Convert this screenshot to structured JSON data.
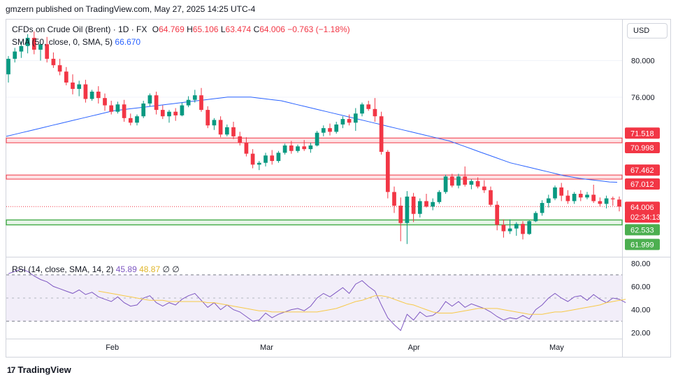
{
  "header": {
    "published_by": "gmzern published on TradingView.com, May 27, 2025 14:25 UTC-4"
  },
  "legend": {
    "symbol": "CFDs on Crude Oil (Brent) · 1D · FX",
    "open_label": "O",
    "open": "64.769",
    "high_label": "H",
    "high": "65.106",
    "low_label": "L",
    "low": "63.474",
    "close_label": "C",
    "close": "64.006",
    "change": "−0.763 (−1.18%)",
    "sma_label": "SMA (50, close, 0, SMA, 5)",
    "sma_value": "66.670",
    "rsi_label": "RSI (14, close, SMA, 14, 2)",
    "rsi_value": "45.89",
    "rsi_sma_value": "48.87",
    "rsi_extra1": "∅",
    "rsi_extra2": "∅"
  },
  "currency_button": "USD",
  "footer": {
    "brand": "TradingView",
    "logo": "17"
  },
  "colors": {
    "up": "#089981",
    "down": "#f23645",
    "sma": "#2962ff",
    "rsi": "#7e57c2",
    "rsi_sma": "#f7c948",
    "support": "#4caf50",
    "resistance": "#f23645",
    "rsi_band": "#ede7f6"
  },
  "chart_data": [
    {
      "type": "candlestick",
      "title": "CFDs on Crude Oil (Brent)",
      "price_axis_ticks": [
        "80.000",
        "76.000"
      ],
      "x_ticks": [
        "Feb",
        "Mar",
        "Apr",
        "May"
      ],
      "ylim": [
        58.5,
        84.5
      ],
      "candles": [
        [
          78.5,
          80.5,
          77.6,
          80.2
        ],
        [
          80.2,
          81.4,
          79.8,
          81.0
        ],
        [
          81.0,
          82.1,
          80.3,
          81.6
        ],
        [
          81.6,
          82.9,
          80.8,
          82.5
        ],
        [
          82.5,
          83.2,
          80.7,
          81.2
        ],
        [
          81.2,
          81.9,
          80.0,
          81.8
        ],
        [
          81.8,
          82.6,
          79.8,
          80.2
        ],
        [
          80.2,
          80.9,
          79.2,
          79.5
        ],
        [
          79.5,
          80.2,
          78.4,
          78.8
        ],
        [
          78.8,
          79.3,
          77.3,
          77.6
        ],
        [
          77.6,
          78.5,
          76.3,
          76.9
        ],
        [
          76.9,
          77.8,
          76.1,
          77.4
        ],
        [
          77.4,
          77.9,
          75.4,
          75.8
        ],
        [
          75.8,
          76.8,
          75.6,
          76.6
        ],
        [
          76.6,
          77.2,
          75.3,
          75.9
        ],
        [
          75.9,
          76.4,
          74.5,
          75.1
        ],
        [
          75.1,
          75.6,
          74.1,
          74.4
        ],
        [
          74.4,
          75.5,
          74.2,
          75.2
        ],
        [
          75.2,
          75.7,
          73.3,
          73.7
        ],
        [
          73.7,
          74.2,
          72.9,
          73.2
        ],
        [
          73.2,
          74.1,
          72.9,
          73.9
        ],
        [
          73.9,
          75.6,
          73.7,
          75.3
        ],
        [
          75.3,
          76.4,
          75.0,
          76.2
        ],
        [
          76.2,
          76.6,
          74.1,
          74.6
        ],
        [
          74.6,
          75.1,
          73.6,
          73.9
        ],
        [
          73.9,
          74.6,
          73.2,
          74.4
        ],
        [
          74.4,
          74.8,
          73.4,
          74.0
        ],
        [
          74.0,
          75.4,
          73.9,
          75.1
        ],
        [
          75.1,
          76.1,
          74.9,
          75.7
        ],
        [
          75.7,
          76.8,
          75.4,
          76.2
        ],
        [
          76.2,
          77.0,
          74.4,
          74.6
        ],
        [
          74.6,
          75.0,
          72.6,
          72.9
        ],
        [
          72.9,
          73.7,
          72.4,
          73.5
        ],
        [
          73.5,
          73.9,
          71.6,
          71.9
        ],
        [
          71.9,
          73.0,
          71.7,
          72.7
        ],
        [
          72.7,
          73.3,
          71.4,
          71.7
        ],
        [
          71.7,
          72.2,
          70.7,
          71.0
        ],
        [
          71.0,
          71.6,
          69.5,
          69.8
        ],
        [
          69.8,
          70.3,
          68.2,
          68.6
        ],
        [
          68.6,
          69.0,
          68.0,
          68.8
        ],
        [
          68.8,
          69.9,
          68.4,
          69.6
        ],
        [
          69.6,
          70.2,
          68.6,
          69.0
        ],
        [
          69.0,
          70.1,
          68.8,
          69.9
        ],
        [
          69.9,
          70.9,
          69.7,
          70.7
        ],
        [
          70.7,
          71.2,
          69.8,
          70.1
        ],
        [
          70.1,
          70.8,
          69.9,
          70.6
        ],
        [
          70.6,
          71.3,
          70.1,
          70.3
        ],
        [
          70.3,
          71.0,
          69.9,
          70.7
        ],
        [
          70.7,
          72.3,
          70.6,
          72.1
        ],
        [
          72.1,
          72.9,
          71.7,
          72.6
        ],
        [
          72.6,
          73.1,
          71.8,
          72.2
        ],
        [
          72.2,
          73.3,
          72.0,
          73.0
        ],
        [
          73.0,
          73.9,
          72.6,
          73.6
        ],
        [
          73.6,
          74.1,
          72.9,
          73.2
        ],
        [
          73.2,
          74.8,
          72.3,
          74.2
        ],
        [
          74.2,
          75.4,
          73.9,
          75.2
        ],
        [
          75.2,
          75.6,
          74.5,
          74.7
        ],
        [
          74.7,
          75.9,
          73.3,
          73.9
        ],
        [
          73.9,
          74.4,
          69.7,
          70.0
        ],
        [
          70.0,
          70.2,
          64.9,
          65.6
        ],
        [
          65.6,
          66.2,
          63.3,
          64.1
        ],
        [
          64.1,
          65.0,
          60.2,
          62.2
        ],
        [
          62.2,
          65.7,
          59.9,
          65.1
        ],
        [
          65.1,
          65.5,
          62.3,
          63.2
        ],
        [
          63.2,
          64.9,
          62.8,
          64.6
        ],
        [
          64.6,
          65.4,
          63.9,
          64.0
        ],
        [
          64.0,
          64.9,
          63.6,
          64.5
        ],
        [
          64.5,
          65.8,
          64.3,
          65.6
        ],
        [
          65.6,
          67.5,
          65.4,
          67.3
        ],
        [
          67.3,
          67.6,
          66.1,
          66.3
        ],
        [
          66.3,
          67.6,
          66.0,
          67.3
        ],
        [
          67.3,
          68.4,
          66.2,
          66.4
        ],
        [
          66.4,
          67.0,
          65.9,
          66.8
        ],
        [
          66.8,
          67.2,
          66.0,
          66.2
        ],
        [
          66.2,
          66.9,
          65.5,
          65.8
        ],
        [
          65.8,
          66.2,
          64.0,
          64.2
        ],
        [
          64.2,
          64.6,
          61.4,
          62.0
        ],
        [
          62.0,
          62.6,
          60.6,
          61.3
        ],
        [
          61.3,
          62.6,
          61.0,
          61.6
        ],
        [
          61.6,
          62.3,
          60.8,
          62.1
        ],
        [
          62.1,
          62.4,
          60.4,
          61.0
        ],
        [
          61.0,
          62.5,
          60.9,
          62.4
        ],
        [
          62.4,
          63.5,
          62.3,
          63.3
        ],
        [
          63.3,
          64.7,
          63.0,
          64.4
        ],
        [
          64.4,
          65.3,
          63.9,
          64.9
        ],
        [
          64.9,
          66.3,
          64.7,
          66.1
        ],
        [
          66.1,
          66.6,
          64.6,
          65.2
        ],
        [
          65.2,
          65.8,
          64.3,
          64.6
        ],
        [
          64.6,
          65.6,
          64.3,
          65.4
        ],
        [
          65.4,
          65.8,
          64.6,
          65.0
        ],
        [
          65.0,
          65.6,
          64.8,
          65.3
        ],
        [
          65.3,
          66.4,
          64.4,
          64.6
        ],
        [
          64.6,
          65.0,
          64.0,
          64.3
        ],
        [
          64.3,
          65.2,
          63.8,
          64.9
        ],
        [
          64.9,
          65.1,
          64.1,
          64.8
        ],
        [
          64.769,
          65.106,
          63.474,
          64.006
        ]
      ],
      "sma_50": [
        71.7,
        71.9,
        72.1,
        72.3,
        72.5,
        72.7,
        72.9,
        73.1,
        73.3,
        73.5,
        73.7,
        73.9,
        74.1,
        74.3,
        74.5,
        74.6,
        74.7,
        74.8,
        74.9,
        75.0,
        75.1,
        75.2,
        75.3,
        75.4,
        75.5,
        75.6,
        75.7,
        75.8,
        75.9,
        76.0,
        76.0,
        76.0,
        76.0,
        75.9,
        75.8,
        75.7,
        75.6,
        75.4,
        75.2,
        75.0,
        74.8,
        74.6,
        74.4,
        74.2,
        74.0,
        73.8,
        73.6,
        73.4,
        73.2,
        73.0,
        72.8,
        72.6,
        72.4,
        72.2,
        72.0,
        71.8,
        71.6,
        71.4,
        71.2,
        70.9,
        70.6,
        70.3,
        70.0,
        69.7,
        69.4,
        69.1,
        68.8,
        68.6,
        68.4,
        68.2,
        68.0,
        67.8,
        67.6,
        67.4,
        67.25,
        67.1,
        67.0,
        66.9,
        66.8,
        66.7,
        66.67
      ],
      "sma_start_index": 0,
      "current_price": 64.006,
      "resistance_zones": [
        [
          70.998,
          71.518
        ],
        [
          67.012,
          67.462
        ]
      ],
      "support_zone": [
        61.999,
        62.533
      ],
      "price_labels": [
        {
          "text": "71.518",
          "kind": "res"
        },
        {
          "text": "70.998",
          "kind": "res"
        },
        {
          "text": "67.462",
          "kind": "res"
        },
        {
          "text": "67.012",
          "kind": "res"
        },
        {
          "text": "64.006",
          "kind": "current"
        },
        {
          "text": "02:34:13",
          "kind": "current-sub"
        },
        {
          "text": "62.533",
          "kind": "sup"
        },
        {
          "text": "61.999",
          "kind": "sup"
        }
      ],
      "price_ticks": [
        80.0,
        76.0
      ]
    },
    {
      "type": "line",
      "title": "RSI (14, close, SMA, 14, 2)",
      "ylim": [
        15,
        85
      ],
      "y_ticks": [
        "80.00",
        "60.00",
        "40.00",
        "20.00"
      ],
      "y_tick_values": [
        80,
        60,
        40,
        20
      ],
      "bands": [
        70,
        30
      ],
      "rsi": [
        71,
        73,
        75,
        73,
        69,
        66,
        64,
        60,
        58,
        56,
        54,
        57,
        53,
        55,
        51,
        49,
        47,
        51,
        46,
        43,
        44,
        50,
        52,
        46,
        43,
        46,
        44,
        49,
        52,
        54,
        48,
        42,
        46,
        40,
        44,
        40,
        38,
        34,
        30,
        31,
        37,
        33,
        36,
        38,
        40,
        41,
        39,
        43,
        50,
        54,
        51,
        55,
        59,
        54,
        62,
        65,
        60,
        56,
        44,
        33,
        27,
        22,
        36,
        31,
        38,
        34,
        35,
        39,
        47,
        43,
        47,
        42,
        45,
        43,
        41,
        38,
        34,
        31,
        33,
        32,
        35,
        32,
        40,
        44,
        50,
        54,
        50,
        47,
        51,
        52,
        48,
        53,
        49,
        46,
        50,
        49,
        46
      ],
      "rsi_sma": [
        null,
        null,
        null,
        null,
        null,
        null,
        null,
        null,
        null,
        null,
        null,
        null,
        null,
        null,
        56,
        55,
        54,
        53,
        52,
        51,
        50,
        49,
        48,
        48,
        48,
        47,
        47,
        47,
        47,
        47,
        47,
        46,
        46,
        45,
        44,
        43,
        42,
        41,
        40,
        39,
        39,
        38,
        38,
        38,
        38,
        38,
        38,
        38,
        38,
        39,
        40,
        41,
        43,
        45,
        47,
        48,
        50,
        52,
        52,
        51,
        49,
        47,
        45,
        44,
        42,
        40,
        38,
        37,
        37,
        37,
        38,
        39,
        40,
        41,
        41,
        41,
        41,
        40,
        39,
        38,
        37,
        36,
        36,
        36,
        37,
        38,
        38,
        39,
        40,
        41,
        42,
        43,
        44,
        46,
        47,
        48,
        49
      ]
    }
  ]
}
